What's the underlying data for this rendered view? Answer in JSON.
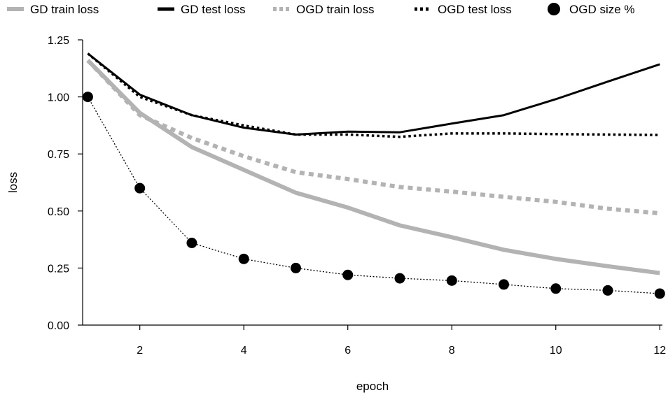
{
  "chart_data": {
    "type": "line",
    "title": "",
    "xlabel": "epoch",
    "ylabel": "loss",
    "xlim": [
      0.9,
      12.05
    ],
    "ylim": [
      0,
      1.25
    ],
    "xticks": [
      2,
      4,
      6,
      8,
      10,
      12
    ],
    "yticks": [
      0,
      0.25,
      0.5,
      0.75,
      1.0,
      1.25
    ],
    "ytick_labels": [
      "0.00",
      "0.25",
      "0.50",
      "0.75",
      "1.00",
      "1.25"
    ],
    "grid": false,
    "legend_position": "top",
    "x": [
      1,
      2,
      3,
      4,
      5,
      6,
      7,
      8,
      9,
      10,
      11,
      12
    ],
    "series": [
      {
        "name": "GD train loss",
        "style": "thick-solid",
        "color": "#b3b3b3",
        "values": [
          1.16,
          0.93,
          0.78,
          0.68,
          0.58,
          0.515,
          0.437,
          0.385,
          0.33,
          0.29,
          0.258,
          0.228
        ]
      },
      {
        "name": "GD test loss",
        "style": "solid",
        "color": "#000000",
        "values": [
          1.19,
          1.01,
          0.92,
          0.865,
          0.835,
          0.848,
          0.845,
          0.883,
          0.92,
          0.99,
          1.067,
          1.143
        ]
      },
      {
        "name": "OGD train loss",
        "style": "thick-dashed",
        "color": "#b3b3b3",
        "values": [
          1.16,
          0.92,
          0.82,
          0.74,
          0.67,
          0.64,
          0.605,
          0.585,
          0.562,
          0.54,
          0.51,
          0.49
        ]
      },
      {
        "name": "OGD test loss",
        "style": "dotted",
        "color": "#000000",
        "values": [
          1.19,
          1.0,
          0.92,
          0.875,
          0.835,
          0.835,
          0.825,
          0.84,
          0.84,
          0.837,
          0.835,
          0.833
        ]
      },
      {
        "name": "OGD size %",
        "style": "points-dotted",
        "color": "#000000",
        "values": [
          1.0,
          0.6,
          0.36,
          0.29,
          0.25,
          0.22,
          0.205,
          0.195,
          0.178,
          0.16,
          0.152,
          0.138
        ]
      }
    ]
  }
}
